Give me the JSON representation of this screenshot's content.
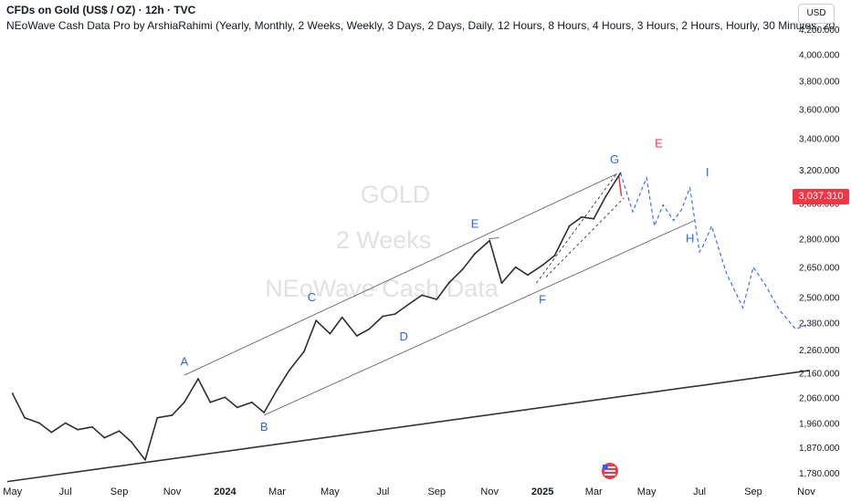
{
  "header": {
    "title": "CFDs on Gold (US$ / OZ) · 12h · TVC",
    "indicator": "NEoWave Cash Data Pro by ArshiaRahimi (Yearly, Monthly, 2 Weeks, Weekly, 3 Days, 2 Days, Daily, 12 Hours, 8 Hours, 4 Hours, 3 Hours, 2 Hours, Hourly, 30 Minutes, 20"
  },
  "currency_button": "USD",
  "watermark": {
    "symbol": "GOLD",
    "interval": "2 Weeks",
    "source": "NEoWave Cash Data"
  },
  "last_price": "3,037.310",
  "colors": {
    "price_line": "#2a2e39",
    "tag": "#f23645",
    "projection": "#2962ff",
    "label_blue": "#2962ff",
    "label_red": "#f23645",
    "channel": "#555555"
  },
  "chart_data": {
    "type": "line",
    "title": "",
    "y_scale": "log",
    "y_range": [
      1740,
      4290
    ],
    "y_ticks": [
      "4,200.000",
      "4,000.000",
      "3,800.000",
      "3,600.000",
      "3,400.000",
      "3,200.000",
      "3,000.000",
      "2,800.000",
      "2,650.000",
      "2,500.000",
      "2,380.000",
      "2,260.000",
      "2,160.000",
      "2,060.000",
      "1,960.000",
      "1,870.000",
      "1,780.000"
    ],
    "x_ticks": [
      "May",
      "Jul",
      "Sep",
      "Nov",
      "2024",
      "Mar",
      "May",
      "Jul",
      "Sep",
      "Nov",
      "2025",
      "Mar",
      "May",
      "Jul",
      "Sep",
      "Nov"
    ],
    "series": [
      {
        "dates": [
          "2023-05-01",
          "2023-05-15",
          "2023-06-01",
          "2023-06-15",
          "2023-07-01",
          "2023-07-15",
          "2023-08-01",
          "2023-08-15",
          "2023-09-01",
          "2023-09-15",
          "2023-10-01",
          "2023-10-15",
          "2023-11-01",
          "2023-11-15",
          "2023-12-01",
          "2023-12-15",
          "2024-01-01",
          "2024-01-15",
          "2024-02-01",
          "2024-02-15",
          "2024-03-01",
          "2024-03-15",
          "2024-04-01",
          "2024-04-15",
          "2024-05-01",
          "2024-05-15",
          "2024-06-01",
          "2024-06-15",
          "2024-07-01",
          "2024-07-15",
          "2024-08-01",
          "2024-08-15",
          "2024-09-01",
          "2024-09-15",
          "2024-10-01",
          "2024-10-15",
          "2024-11-01",
          "2024-11-15",
          "2024-12-01",
          "2024-12-15",
          "2025-01-01",
          "2025-01-15",
          "2025-02-01",
          "2025-02-15",
          "2025-03-01",
          "2025-03-15",
          "2025-04-01"
        ],
        "values": [
          2075,
          1980,
          1960,
          1925,
          1960,
          1935,
          1945,
          1905,
          1930,
          1890,
          1825,
          1980,
          1990,
          2040,
          2135,
          2040,
          2060,
          2020,
          2040,
          2000,
          2090,
          2170,
          2250,
          2390,
          2330,
          2405,
          2320,
          2350,
          2410,
          2420,
          2470,
          2510,
          2490,
          2570,
          2640,
          2720,
          2790,
          2570,
          2650,
          2610,
          2660,
          2710,
          2870,
          2920,
          2910,
          3040,
          3180
        ]
      }
    ],
    "projection": {
      "dates": [
        "2025-04-01",
        "2025-04-15",
        "2025-05-01",
        "2025-05-10",
        "2025-05-20",
        "2025-06-01",
        "2025-06-10",
        "2025-06-20",
        "2025-07-01",
        "2025-07-05",
        "2025-07-15",
        "2025-08-01",
        "2025-08-20",
        "2025-09-01",
        "2025-09-15",
        "2025-10-01",
        "2025-10-20",
        "2025-11-01"
      ],
      "values": [
        3180,
        2950,
        3150,
        2870,
        2990,
        2900,
        2960,
        3090,
        2730,
        2760,
        2870,
        2620,
        2450,
        2650,
        2560,
        2440,
        2350,
        2370
      ]
    },
    "wave_labels": [
      {
        "text": "A",
        "date": "2023-11-15",
        "value": 2190,
        "color": "blue"
      },
      {
        "text": "B",
        "date": "2024-02-15",
        "value": 1930,
        "color": "blue"
      },
      {
        "text": "C",
        "date": "2024-04-10",
        "value": 2480,
        "color": "blue"
      },
      {
        "text": "D",
        "date": "2024-07-25",
        "value": 2300,
        "color": "blue"
      },
      {
        "text": "E",
        "date": "2024-10-15",
        "value": 2860,
        "color": "blue"
      },
      {
        "text": "F",
        "date": "2025-01-01",
        "value": 2470,
        "color": "blue"
      },
      {
        "text": "G",
        "date": "2025-03-25",
        "value": 3240,
        "color": "blue"
      },
      {
        "text": "H",
        "date": "2025-06-20",
        "value": 2780,
        "color": "blue"
      },
      {
        "text": "I",
        "date": "2025-07-10",
        "value": 3160,
        "color": "blue"
      },
      {
        "text": "E",
        "date": "2025-05-15",
        "value": 3340,
        "color": "red"
      }
    ]
  }
}
